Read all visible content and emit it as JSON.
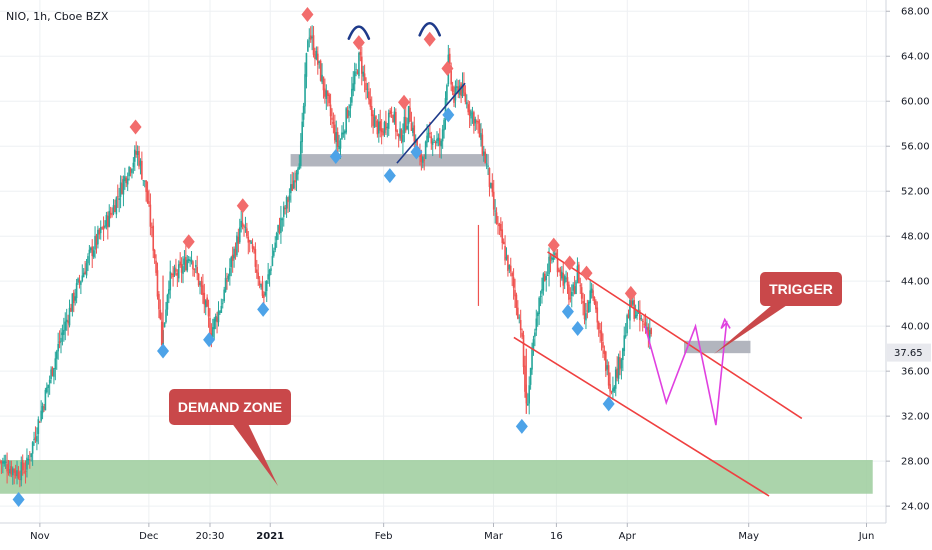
{
  "header": {
    "symbol": "NIO, 1h, Cboe BZX"
  },
  "colors": {
    "up": "#26a69a",
    "down": "#ef5350",
    "peak": "#f26c6c",
    "trough": "#4da3e8",
    "demand": "#9ccc9c",
    "resistance": "#b2b5be",
    "trigger": "#b2b5be",
    "channel": "#ef4040",
    "trendline": "#1e3a8a",
    "projection": "#e040e0",
    "callout": "#c9484a",
    "grid": "#eef0f3"
  },
  "chart_data": {
    "type": "candlestick",
    "symbol": "NIO",
    "interval": "1h",
    "exchange": "Cboe BZX",
    "y_ticks": [
      24,
      28,
      32,
      36,
      40,
      44,
      48,
      52,
      56,
      60,
      64,
      68
    ],
    "y_tick_labels": [
      "24.00",
      "28.00",
      "32.00",
      "36.00",
      "40.00",
      "44.00",
      "48.00",
      "52.00",
      "56.00",
      "60.00",
      "64.00",
      "68.00"
    ],
    "ylim": [
      22.5,
      69
    ],
    "x_labels": [
      {
        "label": "Nov",
        "t": 0.045,
        "bold": false
      },
      {
        "label": "Dec",
        "t": 0.168,
        "bold": false
      },
      {
        "label": "20:30",
        "t": 0.237,
        "bold": false
      },
      {
        "label": "2021",
        "t": 0.305,
        "bold": true
      },
      {
        "label": "Feb",
        "t": 0.433,
        "bold": false
      },
      {
        "label": "Mar",
        "t": 0.557,
        "bold": false
      },
      {
        "label": "16",
        "t": 0.628,
        "bold": false
      },
      {
        "label": "Apr",
        "t": 0.708,
        "bold": false
      },
      {
        "label": "May",
        "t": 0.845,
        "bold": false
      },
      {
        "label": "Jun",
        "t": 0.978,
        "bold": false
      }
    ],
    "last_price": "37.65",
    "last_price_value": 37.65,
    "price_path": [
      [
        0.0,
        28.0
      ],
      [
        0.02,
        27.0
      ],
      [
        0.03,
        27.5
      ],
      [
        0.045,
        32.0
      ],
      [
        0.065,
        38.0
      ],
      [
        0.085,
        43.0
      ],
      [
        0.105,
        47.0
      ],
      [
        0.125,
        50.0
      ],
      [
        0.145,
        54.0
      ],
      [
        0.155,
        55.5
      ],
      [
        0.165,
        52.0
      ],
      [
        0.175,
        46.0
      ],
      [
        0.183,
        38.5
      ],
      [
        0.19,
        44.0
      ],
      [
        0.205,
        45.0
      ],
      [
        0.215,
        46.5
      ],
      [
        0.228,
        43.0
      ],
      [
        0.238,
        39.5
      ],
      [
        0.25,
        42.0
      ],
      [
        0.262,
        46.0
      ],
      [
        0.273,
        49.0
      ],
      [
        0.287,
        46.0
      ],
      [
        0.298,
        42.5
      ],
      [
        0.312,
        48.0
      ],
      [
        0.33,
        52.5
      ],
      [
        0.34,
        56.0
      ],
      [
        0.348,
        66.5
      ],
      [
        0.36,
        63.0
      ],
      [
        0.372,
        59.0
      ],
      [
        0.382,
        55.8
      ],
      [
        0.395,
        60.0
      ],
      [
        0.406,
        64.0
      ],
      [
        0.418,
        59.0
      ],
      [
        0.43,
        57.0
      ],
      [
        0.442,
        59.5
      ],
      [
        0.45,
        56.5
      ],
      [
        0.462,
        59.0
      ],
      [
        0.474,
        54.5
      ],
      [
        0.486,
        57.0
      ],
      [
        0.498,
        56.0
      ],
      [
        0.506,
        63.5
      ],
      [
        0.512,
        60.0
      ],
      [
        0.518,
        61.5
      ],
      [
        0.527,
        59.8
      ],
      [
        0.538,
        58.0
      ],
      [
        0.55,
        54.0
      ],
      [
        0.558,
        50.0
      ],
      [
        0.568,
        47.0
      ],
      [
        0.578,
        44.0
      ],
      [
        0.588,
        40.0
      ],
      [
        0.594,
        32.5
      ],
      [
        0.6,
        37.0
      ],
      [
        0.612,
        44.0
      ],
      [
        0.625,
        46.5
      ],
      [
        0.637,
        44.0
      ],
      [
        0.645,
        42.2
      ],
      [
        0.652,
        45.0
      ],
      [
        0.66,
        40.8
      ],
      [
        0.668,
        44.0
      ],
      [
        0.678,
        38.5
      ],
      [
        0.69,
        34.5
      ],
      [
        0.7,
        37.0
      ],
      [
        0.712,
        42.0
      ],
      [
        0.722,
        40.5
      ],
      [
        0.735,
        39.5
      ]
    ],
    "series": [],
    "annotations": {
      "peaks": [
        {
          "t": 0.153,
          "y": 57.0
        },
        {
          "t": 0.213,
          "y": 46.8
        },
        {
          "t": 0.274,
          "y": 50.0
        },
        {
          "t": 0.347,
          "y": 67.0
        },
        {
          "t": 0.405,
          "y": 64.5
        },
        {
          "t": 0.456,
          "y": 59.2
        },
        {
          "t": 0.485,
          "y": 64.8
        },
        {
          "t": 0.505,
          "y": 62.2
        },
        {
          "t": 0.625,
          "y": 46.5
        },
        {
          "t": 0.643,
          "y": 44.9
        },
        {
          "t": 0.662,
          "y": 44.0
        },
        {
          "t": 0.712,
          "y": 42.2
        }
      ],
      "troughs": [
        {
          "t": 0.021,
          "y": 25.3
        },
        {
          "t": 0.184,
          "y": 38.5
        },
        {
          "t": 0.236,
          "y": 39.5
        },
        {
          "t": 0.297,
          "y": 42.2
        },
        {
          "t": 0.379,
          "y": 55.8
        },
        {
          "t": 0.44,
          "y": 54.1
        },
        {
          "t": 0.47,
          "y": 56.2
        },
        {
          "t": 0.506,
          "y": 59.5
        },
        {
          "t": 0.589,
          "y": 31.8
        },
        {
          "t": 0.641,
          "y": 42.0
        },
        {
          "t": 0.652,
          "y": 40.5
        },
        {
          "t": 0.687,
          "y": 33.8
        }
      ],
      "demand_zone": {
        "t_start": 0.0,
        "t_end": 0.985,
        "y_top": 28.1,
        "y_bottom": 25.1,
        "label": "DEMAND ZONE"
      },
      "resistance_zone": {
        "t_start": 0.328,
        "t_end": 0.552,
        "y_top": 55.3,
        "y_bottom": 54.2
      },
      "trigger_zone": {
        "t_start": 0.772,
        "t_end": 0.847,
        "y_top": 38.7,
        "y_bottom": 37.6,
        "label": "TRIGGER"
      },
      "channel_upper": [
        [
          0.618,
          46.6
        ],
        [
          0.905,
          31.8
        ]
      ],
      "channel_lower": [
        [
          0.58,
          39.0
        ],
        [
          0.868,
          24.9
        ]
      ],
      "trendline": [
        [
          0.448,
          54.5
        ],
        [
          0.525,
          61.6
        ]
      ],
      "projection": [
        [
          0.728,
          40.0
        ],
        [
          0.752,
          33.2
        ],
        [
          0.785,
          40.0
        ],
        [
          0.808,
          31.2
        ],
        [
          0.82,
          40.3
        ],
        [
          0.814,
          39.8
        ],
        [
          0.818,
          40.6
        ],
        [
          0.824,
          39.8
        ]
      ]
    }
  }
}
